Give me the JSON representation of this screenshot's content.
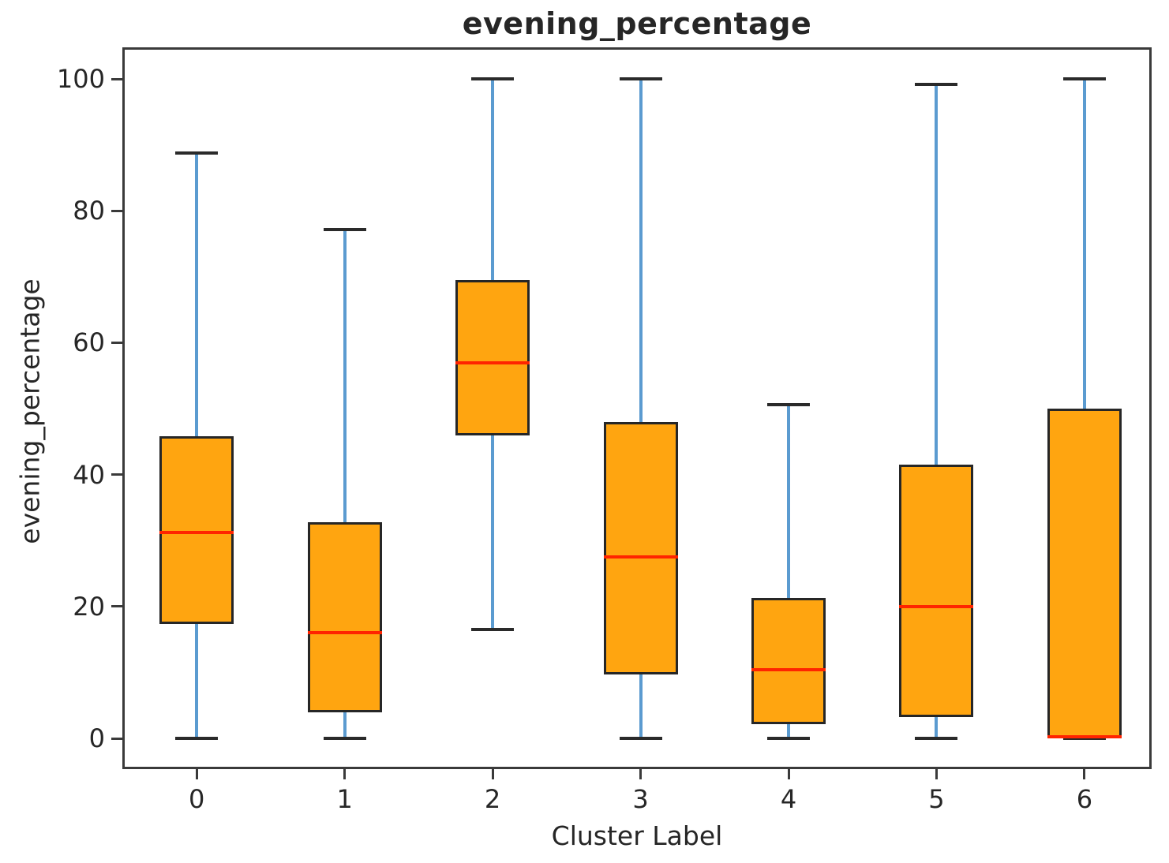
{
  "chart_data": {
    "type": "boxplot",
    "title": "evening_percentage",
    "xlabel": "Cluster Label",
    "ylabel": "evening_percentage",
    "categories": [
      "0",
      "1",
      "2",
      "3",
      "4",
      "5",
      "6"
    ],
    "yticks": [
      {
        "label": "0",
        "value": 0
      },
      {
        "label": "20",
        "value": 20
      },
      {
        "label": "40",
        "value": 40
      },
      {
        "label": "60",
        "value": 60
      },
      {
        "label": "80",
        "value": 80
      },
      {
        "label": "100",
        "value": 100
      }
    ],
    "ylim": [
      -4.7,
      104.8
    ],
    "grid": false,
    "legend": "none",
    "series": [
      {
        "cluster": "0",
        "whisker_low": 0,
        "q1": 17.4,
        "median": 31.2,
        "q3": 45.8,
        "whisker_high": 88.7
      },
      {
        "cluster": "1",
        "whisker_low": 0,
        "q1": 3.9,
        "median": 16.0,
        "q3": 32.8,
        "whisker_high": 77.2
      },
      {
        "cluster": "2",
        "whisker_low": 16.5,
        "q1": 45.9,
        "median": 56.9,
        "q3": 69.5,
        "whisker_high": 100
      },
      {
        "cluster": "3",
        "whisker_low": 0,
        "q1": 9.7,
        "median": 27.5,
        "q3": 48.0,
        "whisker_high": 100
      },
      {
        "cluster": "4",
        "whisker_low": 0,
        "q1": 2.2,
        "median": 10.4,
        "q3": 21.3,
        "whisker_high": 50.6
      },
      {
        "cluster": "5",
        "whisker_low": 0,
        "q1": 3.2,
        "median": 20.0,
        "q3": 41.5,
        "whisker_high": 99.2
      },
      {
        "cluster": "6",
        "whisker_low": 0,
        "q1": 0,
        "median": 0.2,
        "q3": 50.0,
        "whisker_high": 100
      }
    ],
    "colors": {
      "box_fill": "#ffa510",
      "box_edge": "#262626",
      "median": "#ff2400",
      "whisker": "#5b9bd0",
      "cap": "#2a2a2a",
      "spine": "#3a3a3a",
      "text": "#262626",
      "background": "#ffffff"
    }
  }
}
